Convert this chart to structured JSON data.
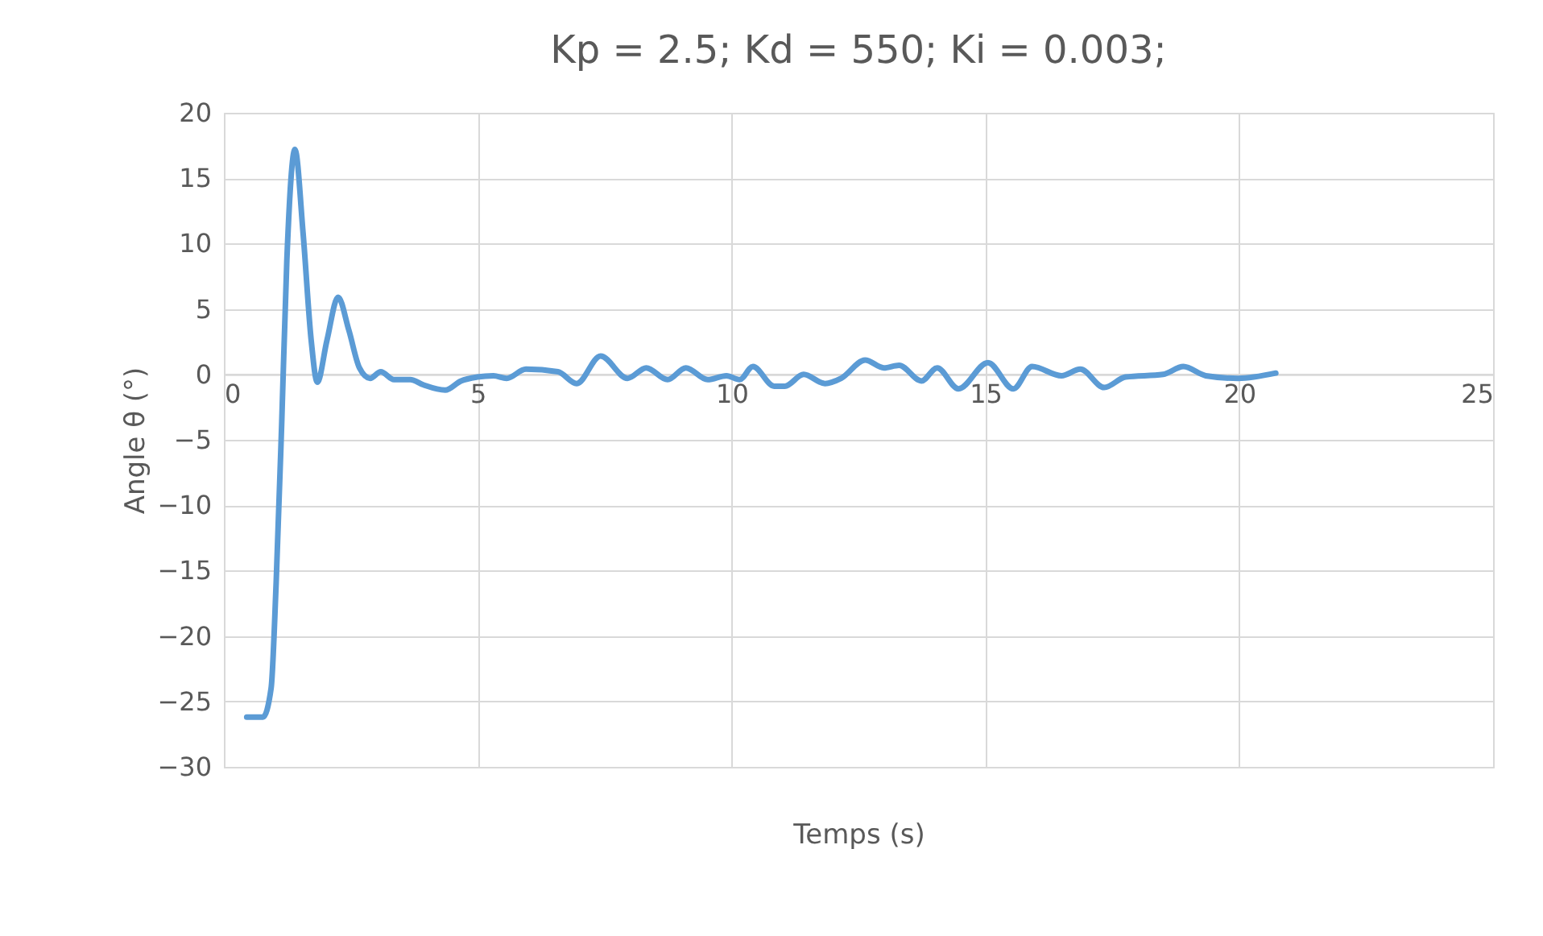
{
  "chart_data": {
    "type": "line",
    "title": "Kp = 2.5;  Kd = 550;  Ki = 0.003;",
    "xlabel": "Temps (s)",
    "ylabel": "Angle  θ (°)",
    "xlim": [
      0,
      25
    ],
    "xticks": [
      0,
      5,
      10,
      15,
      20,
      25
    ],
    "ylim": [
      -30,
      20
    ],
    "yticks": [
      -30,
      -25,
      -20,
      -15,
      -10,
      -5,
      0,
      5,
      10,
      15,
      20
    ],
    "grid": true,
    "marker": "none",
    "line_style": "solid",
    "series": [
      {
        "color": "#5b9bd5",
        "x": [
          0.45,
          0.77,
          0.93,
          1.03,
          1.14,
          1.24,
          1.4,
          1.56,
          1.72,
          1.84,
          2.03,
          2.25,
          2.46,
          2.67,
          2.88,
          3.09,
          3.35,
          3.67,
          3.93,
          4.36,
          4.67,
          4.99,
          5.31,
          5.57,
          5.95,
          6.58,
          6.95,
          7.42,
          7.95,
          8.32,
          8.74,
          9.1,
          9.53,
          9.9,
          10.16,
          10.42,
          10.84,
          11.05,
          11.42,
          11.84,
          12.16,
          12.63,
          13.0,
          13.3,
          13.74,
          14.05,
          14.47,
          15.05,
          15.55,
          15.92,
          16.5,
          16.87,
          17.34,
          17.76,
          18.5,
          18.9,
          19.34,
          19.98,
          20.72
        ],
        "values": [
          -26.2,
          -26.2,
          -24,
          -15.9,
          -3.6,
          8.7,
          17.2,
          10.8,
          2.6,
          -0.6,
          2.6,
          5.9,
          3.4,
          0.5,
          -0.3,
          0.2,
          -0.4,
          -0.4,
          -0.8,
          -1.2,
          -0.5,
          -0.2,
          -0.1,
          -0.3,
          0.4,
          0.2,
          -0.7,
          1.4,
          -0.3,
          0.5,
          -0.4,
          0.5,
          -0.4,
          -0.1,
          -0.4,
          0.6,
          -0.9,
          -0.9,
          0.0,
          -0.7,
          -0.3,
          1.1,
          0.5,
          0.7,
          -0.5,
          0.5,
          -1.1,
          0.9,
          -1.1,
          0.6,
          -0.1,
          0.4,
          -1.0,
          -0.2,
          0.0,
          0.6,
          -0.1,
          -0.3,
          0.1
        ]
      }
    ]
  }
}
